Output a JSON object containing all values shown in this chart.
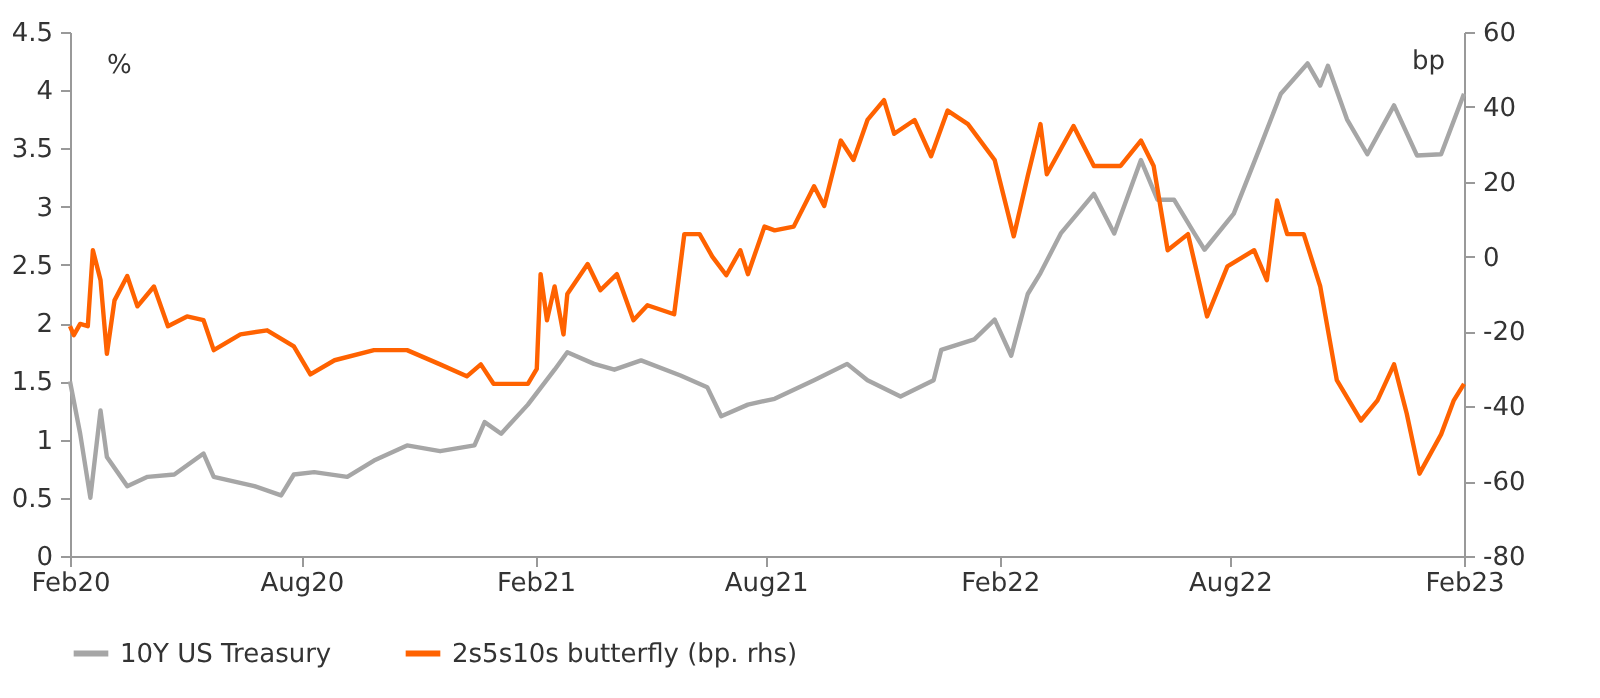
{
  "chart_data": {
    "type": "line",
    "ylabel": "%",
    "y2label": "bp",
    "xlim": [
      "2020-02-01",
      "2023-02-01"
    ],
    "xticks": [
      {
        "value": "2020-02-01",
        "label": "Feb20"
      },
      {
        "value": "2020-08-01",
        "label": "Aug20"
      },
      {
        "value": "2021-02-01",
        "label": "Feb21"
      },
      {
        "value": "2021-08-01",
        "label": "Aug21"
      },
      {
        "value": "2022-02-01",
        "label": "Feb22"
      },
      {
        "value": "2022-08-01",
        "label": "Aug22"
      },
      {
        "value": "2023-02-01",
        "label": "Feb23"
      }
    ],
    "ylim": [
      0,
      4.5
    ],
    "yticks": [
      0,
      0.5,
      1,
      1.5,
      2,
      2.5,
      3,
      3.5,
      4,
      4.5
    ],
    "y2lim": [
      -80,
      60
    ],
    "y2ticks": [
      -80,
      -60,
      -40,
      -20,
      0,
      20,
      40,
      60
    ],
    "grid": false,
    "legend": "bottom",
    "line_style": "solid",
    "marker": "none",
    "series": [
      {
        "name": "10Y US Treasury",
        "color": "#a6a6a6",
        "x": [
          "2020-02-01",
          "2020-02-09",
          "2020-02-17",
          "2020-02-25",
          "2020-03-01",
          "2020-03-17",
          "2020-04-02",
          "2020-04-23",
          "2020-05-16",
          "2020-05-24",
          "2020-06-25",
          "2020-07-16",
          "2020-07-26",
          "2020-08-11",
          "2020-09-06",
          "2020-09-27",
          "2020-10-23",
          "2020-11-18",
          "2020-12-15",
          "2020-12-23",
          "2021-01-05",
          "2021-01-26",
          "2021-02-16",
          "2021-02-26",
          "2021-03-19",
          "2021-04-04",
          "2021-04-25",
          "2021-05-26",
          "2021-06-16",
          "2021-06-27",
          "2021-07-18",
          "2021-08-08",
          "2021-09-08",
          "2021-10-04",
          "2021-10-20",
          "2021-11-15",
          "2021-12-11",
          "2021-12-17",
          "2022-01-12",
          "2022-01-28",
          "2022-02-10",
          "2022-02-23",
          "2022-03-05",
          "2022-03-21",
          "2022-04-16",
          "2022-05-02",
          "2022-05-23",
          "2022-06-05",
          "2022-06-18",
          "2022-07-04",
          "2022-07-12",
          "2022-08-04",
          "2022-08-25",
          "2022-09-10",
          "2022-10-01",
          "2022-10-11",
          "2022-10-17",
          "2022-11-01",
          "2022-11-17",
          "2022-12-08",
          "2022-12-26",
          "2023-01-14",
          "2023-02-01"
        ],
        "values": [
          1.5,
          1.05,
          0.5,
          1.25,
          0.85,
          0.6,
          0.68,
          0.7,
          0.88,
          0.68,
          0.6,
          0.52,
          0.7,
          0.72,
          0.68,
          0.82,
          0.95,
          0.9,
          0.95,
          1.15,
          1.05,
          1.3,
          1.6,
          1.75,
          1.65,
          1.6,
          1.68,
          1.55,
          1.45,
          1.2,
          1.3,
          1.35,
          1.51,
          1.65,
          1.51,
          1.37,
          1.51,
          1.77,
          1.86,
          2.03,
          1.72,
          2.25,
          2.43,
          2.77,
          3.11,
          2.77,
          3.4,
          3.06,
          3.06,
          2.77,
          2.63,
          2.94,
          3.52,
          3.97,
          4.23,
          4.04,
          4.21,
          3.75,
          3.45,
          3.87,
          3.44,
          3.45,
          3.97
        ]
      },
      {
        "name": "2s5s10s butterfly (bp. rhs)",
        "color": "#ff6200",
        "axis": "y2",
        "x": [
          "2020-02-01",
          "2020-02-04",
          "2020-02-09",
          "2020-02-15",
          "2020-02-19",
          "2020-02-25",
          "2020-03-01",
          "2020-03-07",
          "2020-03-17",
          "2020-03-25",
          "2020-04-07",
          "2020-04-18",
          "2020-05-03",
          "2020-05-16",
          "2020-05-24",
          "2020-06-14",
          "2020-07-05",
          "2020-07-26",
          "2020-08-08",
          "2020-08-27",
          "2020-09-27",
          "2020-10-23",
          "2020-11-18",
          "2020-12-09",
          "2020-12-20",
          "2020-12-30",
          "2021-01-26",
          "2021-02-02",
          "2021-02-05",
          "2021-02-10",
          "2021-02-16",
          "2021-02-23",
          "2021-02-26",
          "2021-03-14",
          "2021-03-24",
          "2021-04-06",
          "2021-04-19",
          "2021-04-30",
          "2021-05-21",
          "2021-05-29",
          "2021-06-10",
          "2021-06-20",
          "2021-07-01",
          "2021-07-12",
          "2021-07-18",
          "2021-07-31",
          "2021-08-08",
          "2021-08-23",
          "2021-09-08",
          "2021-09-16",
          "2021-09-29",
          "2021-10-09",
          "2021-10-20",
          "2021-11-02",
          "2021-11-10",
          "2021-11-26",
          "2021-12-09",
          "2021-12-22",
          "2022-01-07",
          "2022-01-28",
          "2022-02-12",
          "2022-02-23",
          "2022-03-05",
          "2022-03-10",
          "2022-03-31",
          "2022-04-16",
          "2022-05-07",
          "2022-05-23",
          "2022-06-02",
          "2022-06-13",
          "2022-06-29",
          "2022-07-14",
          "2022-07-30",
          "2022-08-20",
          "2022-08-30",
          "2022-09-07",
          "2022-09-15",
          "2022-09-28",
          "2022-10-11",
          "2022-10-24",
          "2022-11-12",
          "2022-11-25",
          "2022-12-08",
          "2022-12-18",
          "2022-12-28",
          "2023-01-14",
          "2023-01-24",
          "2023-02-01"
        ],
        "values": [
          -18.6,
          -21,
          -18,
          -18.6,
          1.7,
          -6.3,
          -26,
          -11.7,
          -5.2,
          -13.3,
          -8,
          -18.6,
          -16,
          -17,
          -25,
          -20.8,
          -19.7,
          -24,
          -31.5,
          -27.7,
          -25,
          -25,
          -28.8,
          -32,
          -28.8,
          -34,
          -34,
          -30,
          -4.7,
          -17,
          -8,
          -20.8,
          -10,
          -2,
          -9,
          -4.7,
          -17,
          -13,
          -15.4,
          6,
          6,
          0,
          -5,
          1.7,
          -4.7,
          8,
          7,
          8,
          18.8,
          13.5,
          31,
          25.8,
          36.5,
          41.8,
          32.8,
          36.5,
          26.8,
          39,
          35.4,
          25.8,
          5.4,
          21.5,
          35.4,
          22,
          34.9,
          24.2,
          24.2,
          31,
          24.2,
          1.7,
          6,
          -16,
          -2.6,
          1.7,
          -6.3,
          15,
          6,
          6,
          -8,
          -33,
          -43.8,
          -38.4,
          -28.8,
          -42,
          -58,
          -47.5,
          -38.4,
          -34
        ]
      }
    ]
  }
}
